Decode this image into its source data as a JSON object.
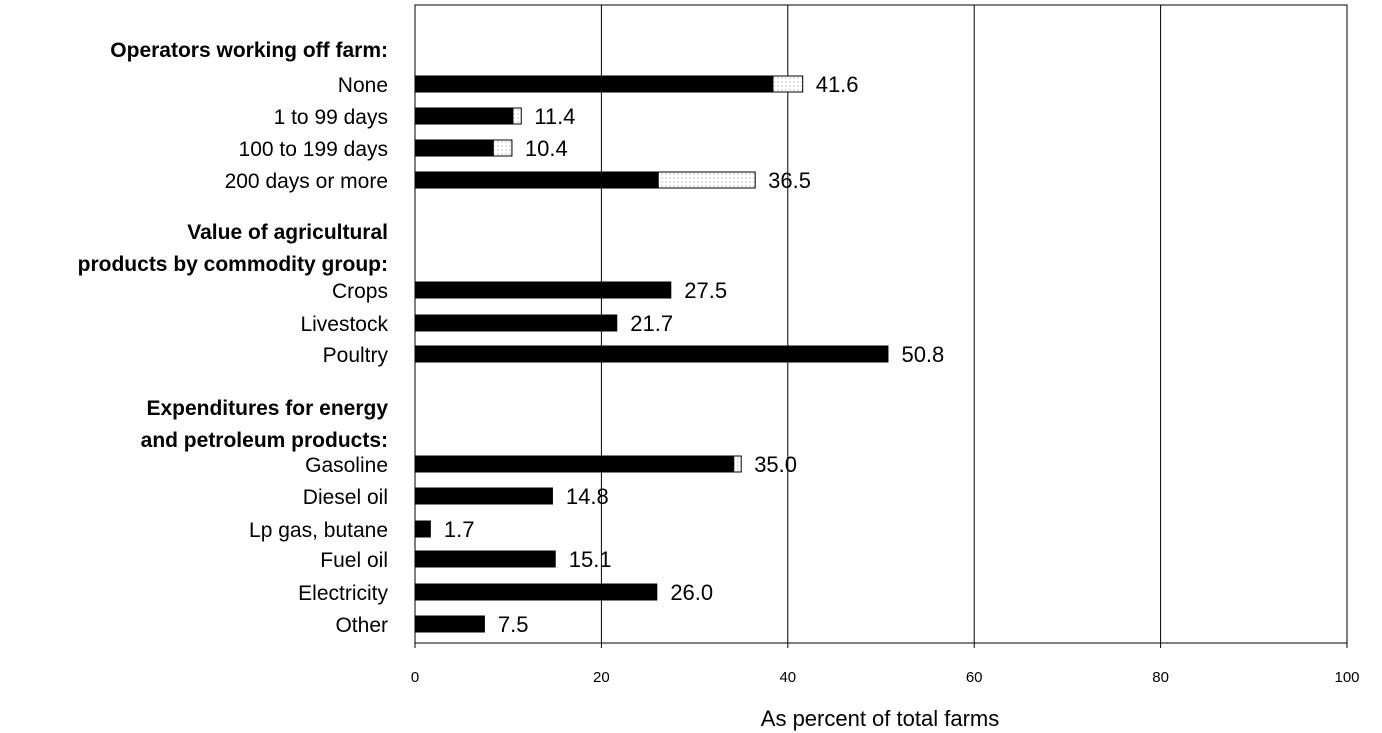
{
  "chart_data": {
    "type": "bar",
    "orientation": "horizontal",
    "title": "",
    "xlabel": "As percent of total farms",
    "ylabel": "",
    "xlim": [
      0,
      100
    ],
    "x_ticks": [
      "0",
      "20",
      "40",
      "60",
      "80",
      "100"
    ],
    "grid": "vertical lines at each tick",
    "legend": "none",
    "colors": {
      "bar": "#000000",
      "extension": "#ffffff",
      "extension_pattern": "dotted"
    },
    "groups": [
      {
        "label": "Operators working off farm:",
        "items": [
          {
            "label": "None",
            "value": 41.6,
            "value_label": "41.6",
            "solid": 38.4
          },
          {
            "label": "1 to 99 days",
            "value": 11.4,
            "value_label": "11.4",
            "solid": 10.5
          },
          {
            "label": "100 to 199 days",
            "value": 10.4,
            "value_label": "10.4",
            "solid": 8.4
          },
          {
            "label": "200 days or more",
            "value": 36.5,
            "value_label": "36.5",
            "solid": 26.1
          }
        ]
      },
      {
        "label": "Value of agricultural products by commodity group:",
        "label_lines": [
          "Value of agricultural",
          "products by commodity group:"
        ],
        "items": [
          {
            "label": "Crops",
            "value": 27.5,
            "value_label": "27.5",
            "solid": 27.5
          },
          {
            "label": "Livestock",
            "value": 21.7,
            "value_label": "21.7",
            "solid": 21.7
          },
          {
            "label": "Poultry",
            "value": 50.8,
            "value_label": "50.8",
            "solid": 50.8
          }
        ]
      },
      {
        "label": "Expenditures for energy and petroleum products:",
        "label_lines": [
          "Expenditures for energy",
          "and petroleum products:"
        ],
        "items": [
          {
            "label": "Gasoline",
            "value": 35.0,
            "value_label": "35.0",
            "solid": 34.2
          },
          {
            "label": "Diesel oil",
            "value": 14.8,
            "value_label": "14.8",
            "solid": 14.8
          },
          {
            "label": "Lp gas, butane",
            "value": 1.7,
            "value_label": "1.7",
            "solid": 1.7
          },
          {
            "label": "Fuel oil",
            "value": 15.1,
            "value_label": "15.1",
            "solid": 15.1
          },
          {
            "label": "Electricity",
            "value": 26.0,
            "value_label": "26.0",
            "solid": 26.0
          },
          {
            "label": "Other",
            "value": 7.5,
            "value_label": "7.5",
            "solid": 7.5
          }
        ]
      }
    ]
  }
}
